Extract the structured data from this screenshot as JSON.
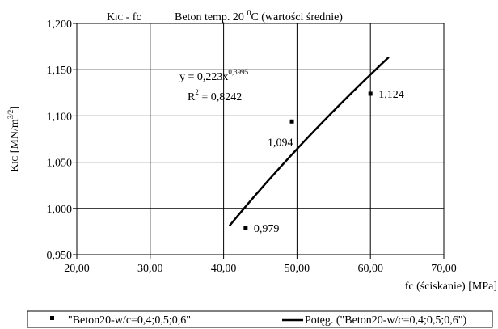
{
  "chart_data": {
    "type": "scatter",
    "title": {
      "left_main": "K",
      "left_sub": "IC",
      "left_rest": " - fc",
      "right_main": "Beton temp. 20 ",
      "right_sup": "0",
      "right_rest": "C (wartości średnie)"
    },
    "ylabel": {
      "main": "K",
      "sub": "IC",
      "unit_main": " [MN/m",
      "unit_sup": "3/2",
      "unit_end": "]"
    },
    "xlabel": "fc (ściskanie) [MPa]",
    "xlim": [
      20,
      70
    ],
    "ylim": [
      0.95,
      1.2
    ],
    "xticks": [
      20,
      30,
      40,
      50,
      60,
      70
    ],
    "xtick_labels": [
      "20,00",
      "30,00",
      "40,00",
      "50,00",
      "60,00",
      "70,00"
    ],
    "yticks": [
      0.95,
      1.0,
      1.05,
      1.1,
      1.15,
      1.2
    ],
    "ytick_labels": [
      "0,950",
      "1,000",
      "1,050",
      "1,100",
      "1,150",
      "1,200"
    ],
    "grid": true,
    "series": [
      {
        "name": "\"Beton20-w/c=0,4;0,5;0,6\"",
        "kind": "points",
        "x": [
          43.0,
          49.3,
          60.0
        ],
        "y": [
          0.979,
          1.094,
          1.124
        ],
        "labels": [
          "0,979",
          "1,094",
          "1,124"
        ],
        "color": "#000000"
      },
      {
        "name": "Potęg. (\"Beton20-w/c=0,4;0,5;0,6\")",
        "kind": "power-fit",
        "a": 0.223,
        "b": 0.3995,
        "x_range": [
          40.8,
          62.5
        ],
        "color": "#000000"
      }
    ],
    "equation": {
      "main": "y = 0,223x",
      "sup": "0,3995"
    },
    "r2": {
      "main": "R",
      "sup": "2",
      "rest": " = 0,8242"
    },
    "legend": "bottom"
  }
}
